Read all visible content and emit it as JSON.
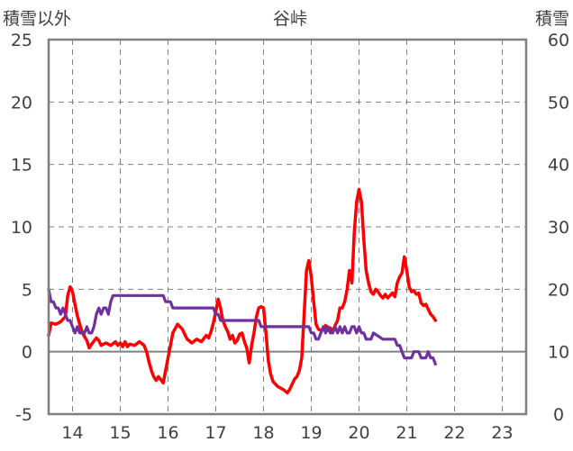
{
  "chart_data": {
    "type": "line",
    "title": "谷峠",
    "left_axis": {
      "label": "積雪以外",
      "ylim": [
        -5,
        25
      ],
      "ticks": [
        "-5",
        "0",
        "5",
        "10",
        "15",
        "20",
        "25"
      ]
    },
    "right_axis": {
      "label": "積雪",
      "ylim": [
        0,
        60
      ],
      "ticks": [
        "0",
        "10",
        "20",
        "30",
        "40",
        "50",
        "60"
      ]
    },
    "xlim": [
      13.5,
      23.5
    ],
    "xticks": [
      "14",
      "15",
      "16",
      "17",
      "18",
      "19",
      "20",
      "21",
      "22",
      "23"
    ],
    "grid": true,
    "series": [
      {
        "axis": "left",
        "color": "#ff0000",
        "x": [
          13.5,
          13.55,
          13.65,
          13.75,
          13.85,
          13.9,
          13.95,
          14.0,
          14.05,
          14.1,
          14.15,
          14.2,
          14.25,
          14.3,
          14.35,
          14.4,
          14.5,
          14.55,
          14.6,
          14.7,
          14.8,
          14.9,
          14.95,
          15.0,
          15.05,
          15.1,
          15.15,
          15.2,
          15.3,
          15.4,
          15.5,
          15.55,
          15.6,
          15.65,
          15.7,
          15.75,
          15.8,
          15.9,
          16.0,
          16.05,
          16.1,
          16.2,
          16.3,
          16.4,
          16.5,
          16.6,
          16.7,
          16.8,
          16.85,
          16.9,
          16.95,
          17.0,
          17.05,
          17.1,
          17.15,
          17.2,
          17.25,
          17.3,
          17.35,
          17.4,
          17.45,
          17.5,
          17.55,
          17.6,
          17.65,
          17.7,
          17.75,
          17.8,
          17.85,
          17.9,
          17.95,
          18.0,
          18.05,
          18.1,
          18.15,
          18.2,
          18.3,
          18.4,
          18.5,
          18.55,
          18.6,
          18.65,
          18.7,
          18.75,
          18.8,
          18.85,
          18.9,
          18.95,
          19.0,
          19.05,
          19.1,
          19.15,
          19.2,
          19.25,
          19.3,
          19.35,
          19.4,
          19.45,
          19.5,
          19.55,
          19.6,
          19.65,
          19.7,
          19.75,
          19.8,
          19.85,
          19.9,
          19.95,
          20.0,
          20.05,
          20.1,
          20.15,
          20.2,
          20.25,
          20.3,
          20.35,
          20.4,
          20.45,
          20.5,
          20.55,
          20.6,
          20.65,
          20.7,
          20.75,
          20.8,
          20.85,
          20.9,
          20.95,
          21.0,
          21.05,
          21.1,
          21.15,
          21.2,
          21.25,
          21.3,
          21.35,
          21.4,
          21.45,
          21.5,
          21.55,
          21.6
        ],
        "y": [
          1.3,
          2.3,
          2.2,
          2.4,
          2.8,
          4.5,
          5.2,
          4.8,
          3.8,
          2.9,
          2.2,
          1.6,
          1.2,
          0.9,
          0.3,
          0.6,
          1.1,
          0.9,
          0.5,
          0.7,
          0.5,
          0.8,
          0.5,
          0.7,
          0.4,
          0.8,
          0.4,
          0.6,
          0.5,
          0.8,
          0.5,
          0.0,
          -0.8,
          -1.5,
          -2.0,
          -2.3,
          -2.0,
          -2.5,
          -0.5,
          0.5,
          1.5,
          2.2,
          1.8,
          1.0,
          0.7,
          1.0,
          0.8,
          1.3,
          1.1,
          1.6,
          2.3,
          3.2,
          4.2,
          3.5,
          2.5,
          2.0,
          1.6,
          1.0,
          1.3,
          0.7,
          0.9,
          1.4,
          1.5,
          0.8,
          0.3,
          -0.9,
          0.5,
          1.5,
          2.8,
          3.5,
          3.6,
          3.5,
          1.5,
          -0.7,
          -1.8,
          -2.4,
          -2.8,
          -3.0,
          -3.3,
          -3.0,
          -2.6,
          -2.2,
          -2.0,
          -1.5,
          -0.5,
          3.0,
          6.5,
          7.3,
          6.0,
          4.0,
          2.2,
          1.8,
          1.7,
          1.8,
          2.1,
          1.7,
          1.9,
          1.6,
          2.1,
          2.5,
          3.5,
          3.5,
          4.0,
          5.0,
          6.5,
          5.5,
          9.5,
          12.0,
          13.0,
          12.0,
          9.0,
          6.5,
          5.5,
          4.8,
          4.6,
          5.0,
          4.8,
          4.5,
          4.3,
          4.6,
          4.3,
          4.5,
          4.7,
          4.4,
          5.5,
          6.0,
          6.3,
          7.6,
          6.5,
          5.2,
          4.8,
          4.9,
          4.6,
          4.7,
          3.9,
          3.7,
          3.8,
          3.4,
          3.0,
          2.8,
          2.5
        ]
      },
      {
        "axis": "right",
        "color": "#7030a0",
        "x": [
          13.5,
          13.55,
          13.6,
          13.65,
          13.7,
          13.75,
          13.8,
          13.85,
          13.9,
          13.95,
          14.0,
          14.05,
          14.1,
          14.15,
          14.2,
          14.25,
          14.3,
          14.35,
          14.4,
          14.45,
          14.5,
          14.55,
          14.6,
          14.65,
          14.7,
          14.75,
          14.8,
          14.85,
          14.9,
          14.95,
          15.0,
          15.5,
          15.9,
          15.95,
          16.0,
          16.05,
          16.1,
          16.5,
          16.9,
          16.95,
          17.0,
          17.05,
          17.1,
          17.5,
          17.9,
          17.95,
          18.0,
          18.05,
          18.1,
          18.5,
          18.95,
          19.0,
          19.05,
          19.1,
          19.15,
          19.2,
          19.25,
          19.3,
          19.35,
          19.4,
          19.45,
          19.5,
          19.55,
          19.6,
          19.65,
          19.7,
          19.75,
          19.8,
          19.85,
          19.9,
          19.95,
          20.0,
          20.05,
          20.1,
          20.15,
          20.2,
          20.25,
          20.3,
          20.5,
          20.75,
          20.8,
          20.85,
          20.9,
          20.95,
          21.0,
          21.05,
          21.1,
          21.15,
          21.2,
          21.25,
          21.3,
          21.35,
          21.4,
          21.45,
          21.5,
          21.55,
          21.6
        ],
        "y": [
          20,
          18,
          18,
          17,
          17,
          16,
          17,
          16,
          15,
          15,
          14,
          13,
          14,
          13,
          13,
          13,
          14,
          13,
          13,
          14,
          16,
          17,
          16,
          17,
          17,
          16,
          18,
          19,
          19,
          19,
          19,
          19,
          19,
          18,
          18,
          18,
          17,
          17,
          17,
          17,
          16,
          16,
          15,
          15,
          15,
          14,
          14,
          14,
          14,
          14,
          14,
          13,
          13,
          12,
          12,
          13,
          14,
          13,
          14,
          13,
          13,
          14,
          13,
          14,
          13,
          14,
          13,
          13,
          14,
          14,
          13,
          14,
          13,
          13,
          12,
          12,
          12,
          13,
          12,
          12,
          11,
          11,
          10,
          9,
          9,
          9,
          9,
          10,
          10,
          10,
          9,
          9,
          9,
          10,
          9,
          9,
          8
        ]
      }
    ]
  }
}
